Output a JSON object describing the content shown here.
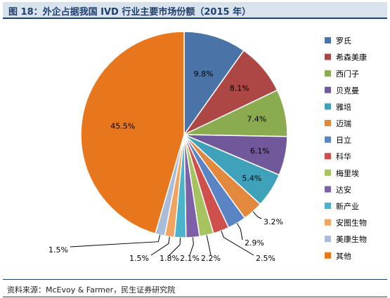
{
  "title": "图 18：外企占据我国 IVD 行业主要市场份额（2015 年）",
  "source": "资料来源：McEvoy & Farmer，民生证券研究院",
  "chart_data": {
    "type": "pie",
    "title": "图 18：外企占据我国 IVD 行业主要市场份额（2015 年）",
    "legend_position": "right",
    "categories": [
      "罗氏",
      "希森美康",
      "西门子",
      "贝克曼",
      "雅培",
      "迈瑞",
      "日立",
      "科华",
      "梅里埃",
      "达安",
      "新产业",
      "安图生物",
      "美康生物",
      "其他"
    ],
    "values": [
      9.8,
      8.1,
      7.4,
      6.1,
      5.4,
      3.2,
      2.9,
      2.5,
      2.2,
      2.1,
      1.8,
      1.5,
      1.5,
      45.5
    ],
    "labels": [
      "9.8%",
      "8.1%",
      "7.4%",
      "6.1%",
      "5.4%",
      "3.2%",
      "2.9%",
      "2.5%",
      "2.2%",
      "2.1%",
      "1.8%",
      "1.5%",
      "1.5%",
      "45.5%"
    ],
    "colors": [
      "#4a74a8",
      "#ad4746",
      "#8aab4e",
      "#71589a",
      "#3fa2ba",
      "#e3893d",
      "#5b84c4",
      "#cf4f4c",
      "#a5c460",
      "#7d60a8",
      "#4bb3cc",
      "#f2a35e",
      "#a9bcd9",
      "#e8761c"
    ]
  }
}
